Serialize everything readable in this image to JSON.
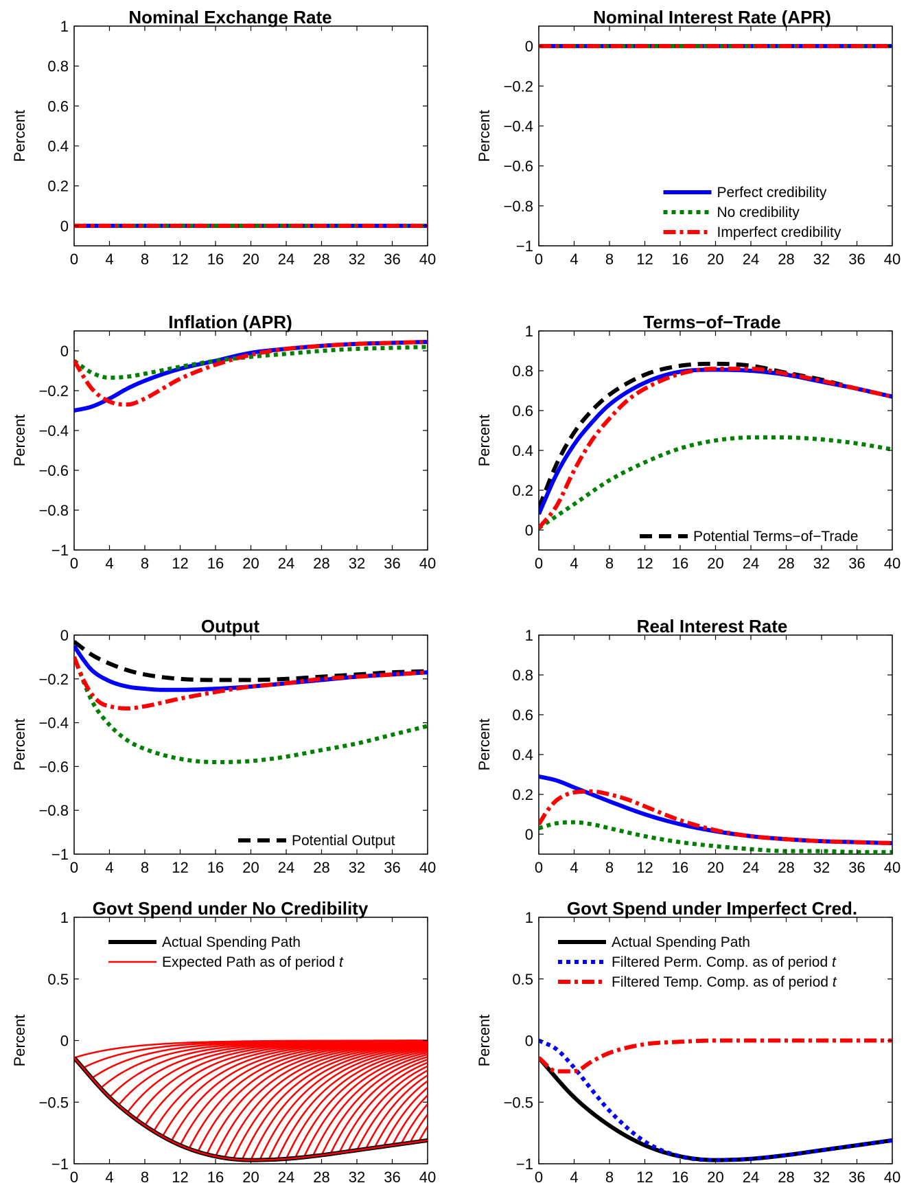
{
  "chart_data": [
    {
      "id": "p1",
      "type": "line",
      "title": "Nominal Exchange Rate",
      "ylabel": "Percent",
      "xlim": [
        0,
        40
      ],
      "ylim": [
        -0.1,
        1
      ],
      "xticks": [
        0,
        4,
        8,
        12,
        16,
        20,
        24,
        28,
        32,
        36,
        40
      ],
      "yticks": [
        0,
        0.2,
        0.4,
        0.6,
        0.8,
        1
      ],
      "ytick_labels": [
        "0",
        "0.2",
        "0.4",
        "0.6",
        "0.8",
        "1"
      ],
      "series": [
        {
          "style": "solid-blue",
          "x": [
            0,
            40
          ],
          "y": [
            0,
            0
          ]
        },
        {
          "style": "dotted-green",
          "x": [
            0,
            40
          ],
          "y": [
            0,
            0
          ]
        },
        {
          "style": "dashdot-red",
          "x": [
            0,
            40
          ],
          "y": [
            0,
            0
          ]
        }
      ],
      "legend": null
    },
    {
      "id": "p2",
      "type": "line",
      "title": "Nominal Interest Rate (APR)",
      "ylabel": "Percent",
      "xlim": [
        0,
        40
      ],
      "ylim": [
        -1,
        0.1
      ],
      "xticks": [
        0,
        4,
        8,
        12,
        16,
        20,
        24,
        28,
        32,
        36,
        40
      ],
      "yticks": [
        0,
        -0.2,
        -0.4,
        -0.6,
        -0.8,
        -1
      ],
      "ytick_labels": [
        "0",
        "−0.2",
        "−0.4",
        "−0.6",
        "−0.8",
        "−1"
      ],
      "series": [
        {
          "name": "Perfect credibility",
          "style": "solid-blue",
          "x": [
            0,
            40
          ],
          "y": [
            0,
            0
          ]
        },
        {
          "name": "No credibility",
          "style": "dotted-green",
          "x": [
            0,
            40
          ],
          "y": [
            0,
            0
          ]
        },
        {
          "name": "Imperfect credibility",
          "style": "dashdot-red",
          "x": [
            0,
            40
          ],
          "y": [
            0,
            0
          ]
        }
      ],
      "legend": {
        "position": "bottom-right",
        "entries": [
          {
            "label": "Perfect credibility",
            "style": "solid-blue"
          },
          {
            "label": "No credibility",
            "style": "dotted-green"
          },
          {
            "label": "Imperfect credibility",
            "style": "dashdot-red"
          }
        ]
      }
    },
    {
      "id": "p3",
      "type": "line",
      "title": "Inflation (APR)",
      "ylabel": "Percent",
      "xlim": [
        0,
        40
      ],
      "ylim": [
        -1,
        0.1
      ],
      "xticks": [
        0,
        4,
        8,
        12,
        16,
        20,
        24,
        28,
        32,
        36,
        40
      ],
      "yticks": [
        0,
        -0.2,
        -0.4,
        -0.6,
        -0.8,
        -1
      ],
      "ytick_labels": [
        "0",
        "−0.2",
        "−0.4",
        "−0.6",
        "−0.8",
        "−1"
      ],
      "series": [
        {
          "style": "solid-blue",
          "x": [
            0,
            2,
            4,
            6,
            8,
            12,
            16,
            20,
            24,
            28,
            32,
            36,
            40
          ],
          "y": [
            -0.3,
            -0.28,
            -0.24,
            -0.19,
            -0.15,
            -0.09,
            -0.05,
            -0.01,
            0.01,
            0.025,
            0.035,
            0.04,
            0.045
          ]
        },
        {
          "style": "dotted-green",
          "x": [
            0,
            2,
            4,
            6,
            8,
            12,
            16,
            20,
            24,
            28,
            32,
            36,
            40
          ],
          "y": [
            -0.05,
            -0.11,
            -0.135,
            -0.13,
            -0.115,
            -0.08,
            -0.05,
            -0.03,
            -0.015,
            0,
            0.01,
            0.015,
            0.02
          ]
        },
        {
          "style": "dashdot-red",
          "x": [
            0,
            2,
            4,
            6,
            8,
            10,
            12,
            16,
            20,
            24,
            28,
            32,
            36,
            40
          ],
          "y": [
            -0.05,
            -0.19,
            -0.255,
            -0.27,
            -0.24,
            -0.19,
            -0.14,
            -0.07,
            -0.02,
            0.01,
            0.025,
            0.035,
            0.04,
            0.045
          ]
        }
      ],
      "legend": null
    },
    {
      "id": "p4",
      "type": "line",
      "title": "Terms−of−Trade",
      "ylabel": "Percent",
      "xlim": [
        0,
        40
      ],
      "ylim": [
        -0.1,
        1
      ],
      "xticks": [
        0,
        4,
        8,
        12,
        16,
        20,
        24,
        28,
        32,
        36,
        40
      ],
      "yticks": [
        0,
        0.2,
        0.4,
        0.6,
        0.8,
        1
      ],
      "ytick_labels": [
        "0",
        "0.2",
        "0.4",
        "0.6",
        "0.8",
        "1"
      ],
      "series": [
        {
          "name": "Potential Terms−of−Trade",
          "style": "dashed-black",
          "x": [
            0,
            2,
            4,
            6,
            8,
            12,
            16,
            20,
            24,
            28,
            32,
            36,
            40
          ],
          "y": [
            0.11,
            0.33,
            0.49,
            0.6,
            0.68,
            0.78,
            0.825,
            0.835,
            0.825,
            0.79,
            0.755,
            0.71,
            0.67
          ]
        },
        {
          "style": "solid-blue",
          "x": [
            0,
            2,
            4,
            6,
            8,
            12,
            16,
            20,
            24,
            28,
            32,
            36,
            40
          ],
          "y": [
            0.08,
            0.28,
            0.43,
            0.54,
            0.63,
            0.74,
            0.795,
            0.805,
            0.8,
            0.78,
            0.745,
            0.71,
            0.67
          ]
        },
        {
          "style": "dotted-green",
          "x": [
            0,
            4,
            8,
            12,
            16,
            20,
            24,
            28,
            32,
            36,
            40
          ],
          "y": [
            0.01,
            0.13,
            0.25,
            0.34,
            0.41,
            0.45,
            0.465,
            0.465,
            0.455,
            0.435,
            0.405
          ]
        },
        {
          "style": "dashdot-red",
          "x": [
            0,
            2,
            4,
            6,
            8,
            10,
            12,
            16,
            20,
            24,
            28,
            32,
            36,
            40
          ],
          "y": [
            0.01,
            0.12,
            0.3,
            0.45,
            0.56,
            0.65,
            0.71,
            0.785,
            0.81,
            0.81,
            0.785,
            0.75,
            0.71,
            0.67
          ]
        }
      ],
      "legend": {
        "position": "bottom-right",
        "entries": [
          {
            "label": "Potential Terms−of−Trade",
            "style": "dashed-black"
          }
        ]
      }
    },
    {
      "id": "p5",
      "type": "line",
      "title": "Output",
      "ylabel": "Percent",
      "xlim": [
        0,
        40
      ],
      "ylim": [
        -1,
        0
      ],
      "xticks": [
        0,
        4,
        8,
        12,
        16,
        20,
        24,
        28,
        32,
        36,
        40
      ],
      "yticks": [
        0,
        -0.2,
        -0.4,
        -0.6,
        -0.8,
        -1
      ],
      "ytick_labels": [
        "0",
        "−0.2",
        "−0.4",
        "−0.6",
        "−0.8",
        "−1"
      ],
      "series": [
        {
          "name": "Potential Output",
          "style": "dashed-black",
          "x": [
            0,
            2,
            4,
            6,
            8,
            12,
            16,
            20,
            24,
            28,
            32,
            36,
            40
          ],
          "y": [
            -0.03,
            -0.09,
            -0.13,
            -0.16,
            -0.18,
            -0.2,
            -0.205,
            -0.205,
            -0.2,
            -0.19,
            -0.18,
            -0.17,
            -0.165
          ]
        },
        {
          "style": "solid-blue",
          "x": [
            0,
            1,
            2,
            4,
            6,
            8,
            10,
            12,
            16,
            20,
            24,
            28,
            32,
            36,
            40
          ],
          "y": [
            -0.05,
            -0.11,
            -0.16,
            -0.21,
            -0.235,
            -0.245,
            -0.25,
            -0.25,
            -0.245,
            -0.235,
            -0.22,
            -0.205,
            -0.19,
            -0.18,
            -0.17
          ]
        },
        {
          "style": "dotted-green",
          "x": [
            0,
            2,
            4,
            6,
            8,
            12,
            16,
            20,
            24,
            28,
            32,
            36,
            40
          ],
          "y": [
            -0.1,
            -0.3,
            -0.41,
            -0.48,
            -0.52,
            -0.565,
            -0.58,
            -0.575,
            -0.555,
            -0.525,
            -0.495,
            -0.455,
            -0.415
          ]
        },
        {
          "style": "dashdot-red",
          "x": [
            0,
            1,
            2,
            3,
            4,
            6,
            8,
            12,
            16,
            20,
            24,
            28,
            32,
            36,
            40
          ],
          "y": [
            -0.1,
            -0.2,
            -0.27,
            -0.31,
            -0.325,
            -0.335,
            -0.325,
            -0.29,
            -0.26,
            -0.235,
            -0.22,
            -0.2,
            -0.19,
            -0.18,
            -0.17
          ]
        }
      ],
      "legend": {
        "position": "bottom-right",
        "entries": [
          {
            "label": "Potential Output",
            "style": "dashed-black"
          }
        ]
      }
    },
    {
      "id": "p6",
      "type": "line",
      "title": "Real Interest Rate",
      "ylabel": "Percent",
      "xlim": [
        0,
        40
      ],
      "ylim": [
        -0.1,
        1
      ],
      "xticks": [
        0,
        4,
        8,
        12,
        16,
        20,
        24,
        28,
        32,
        36,
        40
      ],
      "yticks": [
        0,
        0.2,
        0.4,
        0.6,
        0.8,
        1
      ],
      "ytick_labels": [
        "0",
        "0.2",
        "0.4",
        "0.6",
        "0.8",
        "1"
      ],
      "series": [
        {
          "style": "solid-blue",
          "x": [
            0,
            2,
            4,
            6,
            8,
            12,
            16,
            20,
            24,
            28,
            32,
            36,
            40
          ],
          "y": [
            0.29,
            0.27,
            0.235,
            0.2,
            0.165,
            0.1,
            0.05,
            0.015,
            -0.01,
            -0.025,
            -0.035,
            -0.04,
            -0.045
          ]
        },
        {
          "style": "dotted-green",
          "x": [
            0,
            2,
            4,
            6,
            8,
            12,
            16,
            20,
            24,
            28,
            32,
            36,
            40
          ],
          "y": [
            0.03,
            0.055,
            0.06,
            0.05,
            0.03,
            -0.01,
            -0.04,
            -0.06,
            -0.075,
            -0.085,
            -0.085,
            -0.09,
            -0.09
          ]
        },
        {
          "style": "dashdot-red",
          "x": [
            0,
            1,
            2,
            4,
            6,
            8,
            10,
            12,
            16,
            20,
            24,
            28,
            32,
            36,
            40
          ],
          "y": [
            0.05,
            0.12,
            0.17,
            0.21,
            0.215,
            0.2,
            0.175,
            0.14,
            0.07,
            0.02,
            -0.01,
            -0.025,
            -0.035,
            -0.04,
            -0.045
          ]
        }
      ],
      "legend": null
    },
    {
      "id": "p7",
      "type": "line",
      "title": "Govt Spend under No Credibility",
      "ylabel": "Percent",
      "xlim": [
        0,
        40
      ],
      "ylim": [
        -1,
        1
      ],
      "xticks": [
        0,
        4,
        8,
        12,
        16,
        20,
        24,
        28,
        32,
        36,
        40
      ],
      "yticks": [
        1,
        0.5,
        0,
        -0.5,
        -1
      ],
      "ytick_labels": [
        "1",
        "0.5",
        "0",
        "−0.5",
        "−1"
      ],
      "actual_path": {
        "name": "Actual Spending Path",
        "style": "solid-black-thick",
        "x": [
          0,
          4,
          8,
          12,
          16,
          20,
          24,
          28,
          32,
          36,
          40
        ],
        "y": [
          -0.14,
          -0.46,
          -0.69,
          -0.85,
          -0.94,
          -0.97,
          -0.96,
          -0.93,
          -0.89,
          -0.85,
          -0.81
        ]
      },
      "expected_paths": {
        "name": "Expected Path as of period t",
        "style": "solid-red-thin",
        "start_periods": [
          0,
          1,
          2,
          3,
          4,
          5,
          6,
          7,
          8,
          9,
          10,
          11,
          12,
          13,
          14,
          15,
          16,
          17,
          18,
          19,
          20,
          21,
          22,
          23,
          24,
          25,
          26,
          27,
          28,
          29,
          30,
          31,
          32,
          33,
          34,
          35,
          36,
          37,
          38,
          39
        ],
        "decay_per_period": 0.85
      },
      "legend": {
        "position": "top-right",
        "entries": [
          {
            "label": "Actual Spending Path",
            "style": "solid-black-thick"
          },
          {
            "label": "Expected Path as of period ",
            "label_italic": "t",
            "style": "solid-red-thin"
          }
        ]
      }
    },
    {
      "id": "p8",
      "type": "line",
      "title": "Govt Spend under Imperfect Cred.",
      "ylabel": "Percent",
      "xlim": [
        0,
        40
      ],
      "ylim": [
        -1,
        1
      ],
      "xticks": [
        0,
        4,
        8,
        12,
        16,
        20,
        24,
        28,
        32,
        36,
        40
      ],
      "yticks": [
        1,
        0.5,
        0,
        -0.5,
        -1
      ],
      "ytick_labels": [
        "1",
        "0.5",
        "0",
        "−0.5",
        "−1"
      ],
      "series": [
        {
          "name": "Actual Spending Path",
          "style": "solid-black-thick",
          "x": [
            0,
            4,
            8,
            12,
            16,
            20,
            24,
            28,
            32,
            36,
            40
          ],
          "y": [
            -0.14,
            -0.46,
            -0.69,
            -0.85,
            -0.94,
            -0.97,
            -0.96,
            -0.93,
            -0.89,
            -0.85,
            -0.81
          ]
        },
        {
          "name": "Filtered Perm. Comp. as of period t",
          "style": "dotted-blue",
          "x": [
            0,
            2,
            4,
            6,
            8,
            12,
            16,
            20,
            24,
            28,
            32,
            36,
            40
          ],
          "y": [
            0,
            -0.07,
            -0.22,
            -0.4,
            -0.57,
            -0.82,
            -0.94,
            -0.97,
            -0.96,
            -0.93,
            -0.89,
            -0.85,
            -0.81
          ]
        },
        {
          "name": "Filtered Temp. Comp. as of period t",
          "style": "dashdot-red",
          "x": [
            0,
            2,
            4,
            6,
            8,
            12,
            16,
            20,
            24,
            28,
            32,
            36,
            40
          ],
          "y": [
            -0.14,
            -0.25,
            -0.25,
            -0.17,
            -0.1,
            -0.03,
            -0.01,
            0,
            0,
            0,
            0,
            0,
            0
          ]
        }
      ],
      "legend": {
        "position": "top-left",
        "entries": [
          {
            "label": "Actual Spending Path",
            "style": "solid-black-thick"
          },
          {
            "label": "Filtered Perm. Comp. as of period ",
            "label_italic": "t",
            "style": "dotted-blue"
          },
          {
            "label": "Filtered Temp. Comp. as of period ",
            "label_italic": "t",
            "style": "dashdot-red"
          }
        ]
      }
    }
  ],
  "colors": {
    "blue": "#0000ff",
    "green": "#008000",
    "red": "#ff0000",
    "black": "#000000"
  }
}
